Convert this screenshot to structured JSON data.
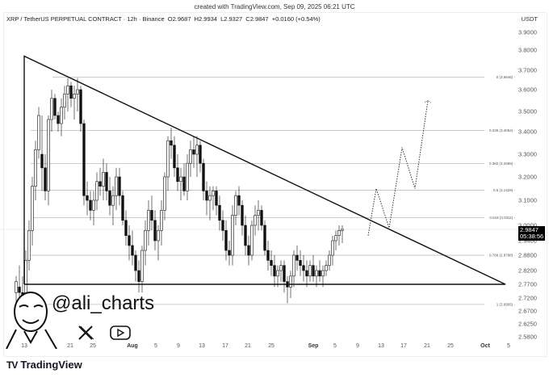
{
  "header": {
    "created": "created with TradingView.com, Sep 09, 2025 06:21 UTC",
    "symbol": "XRP / TetherUS PERPETUAL CONTRACT · 12h · Binance",
    "open": "O2.9687",
    "high": "H2.9934",
    "low": "L2.9327",
    "close": "C2.9847",
    "change": "+0.0160 (+0.54%)",
    "unit": "USDT"
  },
  "price_badge": {
    "price": "2.9847",
    "countdown": "05:38:56"
  },
  "watermark": {
    "handle": "@ali_charts",
    "icons": [
      "x-logo-icon",
      "youtube-icon"
    ]
  },
  "brand": {
    "logo": "TV",
    "name": "TradingView"
  },
  "chart_data": {
    "type": "candlestick",
    "title": "XRP / TetherUS PERPETUAL CONTRACT · 12h · Binance",
    "xlabel": "",
    "ylabel": "USDT",
    "ylim": [
      2.56,
      3.92
    ],
    "y_ticks": [
      "3.9000",
      "3.8000",
      "3.7000",
      "3.6000",
      "3.5000",
      "3.4000",
      "3.3000",
      "3.2000",
      "3.1000",
      "3.0000",
      "2.9400",
      "2.8800",
      "2.8200",
      "2.7700",
      "2.7200",
      "2.6700",
      "2.6250",
      "2.5800"
    ],
    "x_ticks": [
      {
        "label": "13",
        "bold": false
      },
      {
        "label": "21",
        "bold": false
      },
      {
        "label": "25",
        "bold": false
      },
      {
        "label": "Aug",
        "bold": true
      },
      {
        "label": "5",
        "bold": false
      },
      {
        "label": "9",
        "bold": false
      },
      {
        "label": "13",
        "bold": false
      },
      {
        "label": "17",
        "bold": false
      },
      {
        "label": "21",
        "bold": false
      },
      {
        "label": "25",
        "bold": false
      },
      {
        "label": "Sep",
        "bold": true
      },
      {
        "label": "5",
        "bold": false
      },
      {
        "label": "9",
        "bold": false
      },
      {
        "label": "13",
        "bold": false
      },
      {
        "label": "17",
        "bold": false
      },
      {
        "label": "21",
        "bold": false
      },
      {
        "label": "25",
        "bold": false
      },
      {
        "label": "Oct",
        "bold": true
      },
      {
        "label": "5",
        "bold": false
      }
    ],
    "fib_levels": [
      {
        "ratio": "0",
        "price": 3.6646,
        "label": "0 (3.6646)"
      },
      {
        "ratio": "0.236",
        "price": 3.4064,
        "label": "0.236 (3.4064)"
      },
      {
        "ratio": "0.382",
        "price": 3.2589,
        "label": "0.382 (3.2589)"
      },
      {
        "ratio": "0.5",
        "price": 3.1429,
        "label": "0.5 (3.1429)"
      },
      {
        "ratio": "0.618",
        "price": 3.0311,
        "label": "0.618 (3.0311)"
      },
      {
        "ratio": "0.786",
        "price": 2.8798,
        "label": "0.786 (2.8798)"
      },
      {
        "ratio": "1",
        "price": 2.6955,
        "label": "1 (2.6955)"
      }
    ],
    "triangle": {
      "apex_top": 3.77,
      "support": 2.77,
      "right_vertex_price": 2.77
    },
    "projection": {
      "style": "dotted",
      "points": [
        2.96,
        3.15,
        2.99,
        3.33,
        3.15,
        3.55
      ]
    },
    "last_price": 2.9847
  }
}
